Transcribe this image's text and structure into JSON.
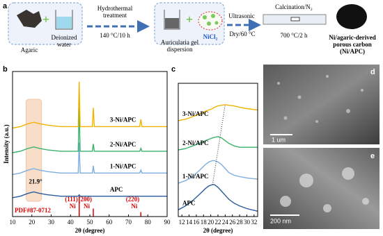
{
  "panel_labels": [
    "a",
    "b",
    "c",
    "d",
    "e"
  ],
  "schematic": {
    "agaric": "Agaric",
    "water": [
      "Deionized",
      "water"
    ],
    "step1": [
      "Hydrothermal",
      "treatment"
    ],
    "step1_condition": "140 °C/10 h",
    "gel": [
      "Auricularia gel",
      "dispersion"
    ],
    "salt": "NiCl₂",
    "step2": "Ultrasonic",
    "step2_condition": "Dry/60 °C",
    "step3": "Calcination/N₂",
    "step3_condition": "700 °C/2 h",
    "product": [
      "Ni/agaric-derived",
      "porous  carbon",
      "(Ni/APC)"
    ]
  },
  "chart_data": [
    {
      "type": "line",
      "xlabel": "2θ (degree)",
      "ylabel": "Intensity (a.u.)",
      "xlim": [
        10,
        90
      ],
      "xticks": [
        10,
        20,
        30,
        40,
        50,
        60,
        70,
        80,
        90
      ],
      "ylim": [
        0,
        10
      ],
      "x": [
        10,
        14,
        18,
        21,
        24,
        28,
        35,
        42,
        44,
        44.5,
        45,
        48,
        51.3,
        51.8,
        52.3,
        58,
        66,
        75.8,
        76.4,
        77,
        84,
        90
      ],
      "series": [
        {
          "name": "APC",
          "color": "#2a5b9c",
          "values": [
            1.3,
            1.4,
            1.6,
            1.7,
            1.6,
            1.5,
            1.4,
            1.4,
            1.4,
            1.5,
            1.4,
            1.4,
            1.4,
            1.4,
            1.4,
            1.4,
            1.4,
            1.4,
            1.4,
            1.4,
            1.4,
            1.4
          ]
        },
        {
          "name": "1-Ni/APC",
          "color": "#7eaee0",
          "values": [
            2.9,
            3.0,
            3.2,
            3.3,
            3.2,
            3.1,
            3.0,
            3.0,
            3.0,
            5.1,
            3.0,
            3.0,
            3.0,
            3.5,
            3.0,
            3.0,
            3.0,
            3.0,
            3.2,
            3.0,
            3.0,
            3.0
          ]
        },
        {
          "name": "2-Ni/APC",
          "color": "#3bb36d",
          "values": [
            4.4,
            4.5,
            4.7,
            4.8,
            4.7,
            4.6,
            4.5,
            4.5,
            4.5,
            7.5,
            4.5,
            4.5,
            4.5,
            5.0,
            4.5,
            4.5,
            4.5,
            4.5,
            4.7,
            4.5,
            4.5,
            4.5
          ]
        },
        {
          "name": "3-Ni/APC",
          "color": "#f0b400",
          "values": [
            6.1,
            6.2,
            6.4,
            6.5,
            6.4,
            6.3,
            6.2,
            6.2,
            6.2,
            9.3,
            6.2,
            6.2,
            6.2,
            7.5,
            6.2,
            6.2,
            6.2,
            6.2,
            6.7,
            6.2,
            6.2,
            6.2
          ]
        }
      ],
      "highlight_x": [
        17,
        25
      ],
      "annotation": {
        "text": "21.9°",
        "x": 21.9
      },
      "reference": {
        "name": "PDF#87-0712",
        "color": "#e00000",
        "x": [
          44.5,
          51.8,
          76.4
        ],
        "values": [
          1.4,
          0.55,
          0.3
        ],
        "labels": [
          "(111)",
          "(200)",
          "(220)"
        ],
        "phase": "Ni"
      }
    },
    {
      "type": "line",
      "xlabel": "2θ (degree)",
      "xlim": [
        11,
        33
      ],
      "xticks": [
        12,
        14,
        16,
        18,
        20,
        22,
        24,
        26,
        28,
        30,
        32
      ],
      "ylim": [
        0,
        10
      ],
      "x": [
        11,
        13,
        15,
        17,
        18.5,
        19.5,
        20.5,
        21,
        22,
        23,
        24,
        25,
        26.5,
        28,
        30,
        33
      ],
      "series": [
        {
          "name": "APC",
          "color": "#2a5b9c",
          "values": [
            0.5,
            0.8,
            1.2,
            1.7,
            2.1,
            2.3,
            2.4,
            2.4,
            2.2,
            1.9,
            1.6,
            1.3,
            1.0,
            0.8,
            0.6,
            0.4
          ]
        },
        {
          "name": "1-Ni/APC",
          "color": "#7eaee0",
          "values": [
            2.5,
            2.7,
            3.0,
            3.5,
            3.9,
            4.1,
            4.2,
            4.2,
            4.1,
            3.9,
            3.6,
            3.3,
            3.1,
            3.0,
            2.9,
            2.8
          ]
        },
        {
          "name": "2-Ni/APC",
          "color": "#3bb36d",
          "values": [
            5.0,
            5.1,
            5.3,
            5.5,
            5.7,
            5.8,
            5.9,
            5.95,
            6.0,
            5.9,
            5.7,
            5.5,
            5.3,
            5.2,
            5.2,
            5.2
          ]
        },
        {
          "name": "3-Ni/APC",
          "color": "#f0b400",
          "values": [
            7.2,
            7.3,
            7.5,
            7.7,
            7.9,
            8.0,
            8.1,
            8.2,
            8.3,
            8.35,
            8.4,
            8.35,
            8.3,
            8.2,
            8.1,
            8.0
          ]
        }
      ]
    }
  ],
  "sem": {
    "scale_d": "1 um",
    "scale_e": "200 nm"
  }
}
